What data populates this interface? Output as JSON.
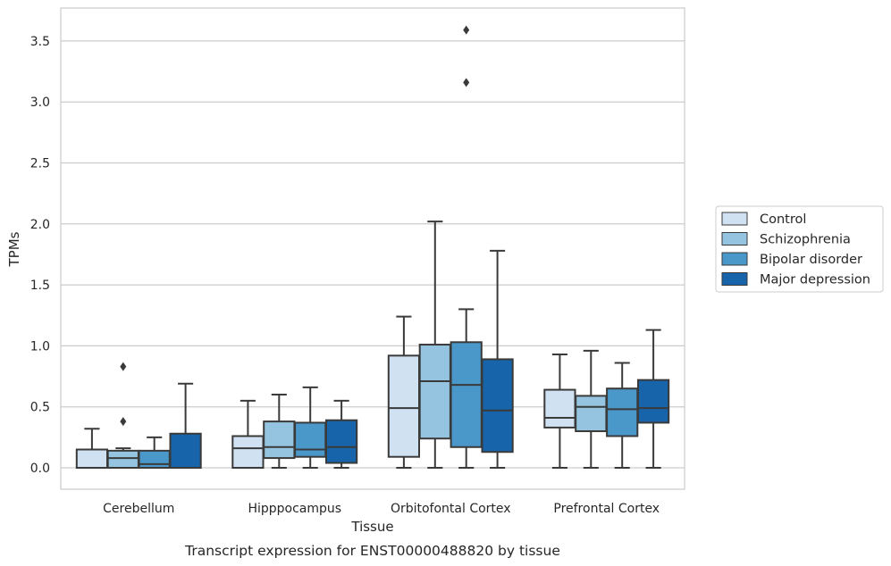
{
  "caption": "Transcript expression for ENST00000488820 by tissue",
  "chart_data": {
    "type": "box",
    "xlabel": "Tissue",
    "ylabel": "TPMs",
    "ylim": [
      -0.18,
      3.78
    ],
    "yticks": [
      "0.0",
      "0.5",
      "1.0",
      "1.5",
      "2.0",
      "2.5",
      "3.0",
      "3.5"
    ],
    "grid": "horizontal",
    "legend_position": "right, outside plot",
    "categories": [
      "Cerebellum",
      "Hipppocampus",
      "Orbitofontal Cortex",
      "Prefrontal Cortex"
    ],
    "series": [
      {
        "name": "Control",
        "color": "#d0e1f2",
        "boxes": [
          {
            "whisker_low": 0.0,
            "q1": 0.0,
            "median": 0.0,
            "q3": 0.15,
            "whisker_high": 0.32,
            "outliers": []
          },
          {
            "whisker_low": 0.0,
            "q1": 0.0,
            "median": 0.16,
            "q3": 0.26,
            "whisker_high": 0.55,
            "outliers": []
          },
          {
            "whisker_low": 0.0,
            "q1": 0.09,
            "median": 0.49,
            "q3": 0.92,
            "whisker_high": 1.24,
            "outliers": []
          },
          {
            "whisker_low": 0.0,
            "q1": 0.33,
            "median": 0.41,
            "q3": 0.64,
            "whisker_high": 0.93,
            "outliers": []
          }
        ]
      },
      {
        "name": "Schizophrenia",
        "color": "#94c4df",
        "boxes": [
          {
            "whisker_low": 0.0,
            "q1": 0.0,
            "median": 0.08,
            "q3": 0.14,
            "whisker_high": 0.16,
            "outliers": [
              0.38,
              0.83
            ]
          },
          {
            "whisker_low": 0.0,
            "q1": 0.08,
            "median": 0.17,
            "q3": 0.38,
            "whisker_high": 0.6,
            "outliers": []
          },
          {
            "whisker_low": 0.0,
            "q1": 0.24,
            "median": 0.71,
            "q3": 1.01,
            "whisker_high": 2.02,
            "outliers": []
          },
          {
            "whisker_low": 0.0,
            "q1": 0.3,
            "median": 0.5,
            "q3": 0.59,
            "whisker_high": 0.96,
            "outliers": []
          }
        ]
      },
      {
        "name": "Bipolar disorder",
        "color": "#4a98c9",
        "boxes": [
          {
            "whisker_low": 0.0,
            "q1": 0.0,
            "median": 0.03,
            "q3": 0.14,
            "whisker_high": 0.25,
            "outliers": []
          },
          {
            "whisker_low": 0.0,
            "q1": 0.09,
            "median": 0.15,
            "q3": 0.37,
            "whisker_high": 0.66,
            "outliers": []
          },
          {
            "whisker_low": 0.0,
            "q1": 0.17,
            "median": 0.68,
            "q3": 1.03,
            "whisker_high": 1.3,
            "outliers": [
              3.16,
              3.59
            ]
          },
          {
            "whisker_low": 0.0,
            "q1": 0.26,
            "median": 0.48,
            "q3": 0.65,
            "whisker_high": 0.86,
            "outliers": []
          }
        ]
      },
      {
        "name": "Major depression",
        "color": "#1764ab",
        "boxes": [
          {
            "whisker_low": 0.0,
            "q1": 0.0,
            "median": 0.0,
            "q3": 0.28,
            "whisker_high": 0.69,
            "outliers": []
          },
          {
            "whisker_low": 0.0,
            "q1": 0.04,
            "median": 0.17,
            "q3": 0.39,
            "whisker_high": 0.55,
            "outliers": []
          },
          {
            "whisker_low": 0.0,
            "q1": 0.13,
            "median": 0.47,
            "q3": 0.89,
            "whisker_high": 1.78,
            "outliers": []
          },
          {
            "whisker_low": 0.0,
            "q1": 0.37,
            "median": 0.49,
            "q3": 0.72,
            "whisker_high": 1.13,
            "outliers": []
          }
        ]
      }
    ]
  }
}
